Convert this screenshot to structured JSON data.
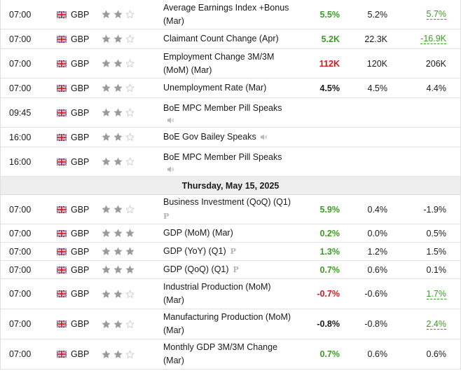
{
  "colors": {
    "positive": "#3a9d23",
    "negative": "#d11a1a",
    "star_on": "#9a9a9a",
    "star_off": "#cccccc",
    "date_bg": "#eeeeee"
  },
  "icons": {
    "flag": "uk-flag-icon",
    "star": "star-icon",
    "speech": "speaker-icon",
    "preliminary": "preliminary-p-icon"
  },
  "date_header_2": "Thursday, May 15, 2025",
  "events_1": [
    {
      "time": "07:00",
      "currency": "GBP",
      "stars": 2,
      "line1": "Average Earnings Index +Bonus",
      "line2": "(Mar)",
      "actual": "5.5%",
      "actual_class": "pos",
      "forecast": "5.2%",
      "previous": "5.7%",
      "prev_class": "pos revised",
      "h": 42
    },
    {
      "time": "07:00",
      "currency": "GBP",
      "stars": 2,
      "line1": "Claimant Count Change (Apr)",
      "line2": "",
      "actual": "5.2K",
      "actual_class": "pos",
      "forecast": "22.3K",
      "previous": "-16.9K",
      "prev_class": "pos revised",
      "h": 28
    },
    {
      "time": "07:00",
      "currency": "GBP",
      "stars": 2,
      "line1": "Employment Change 3M/3M",
      "line2": "(MoM) (Mar)",
      "actual": "112K",
      "actual_class": "neg",
      "forecast": "120K",
      "previous": "206K",
      "prev_class": "neutral",
      "h": 42
    },
    {
      "time": "07:00",
      "currency": "GBP",
      "stars": 2,
      "line1": "Unemployment Rate (Mar)",
      "line2": "",
      "actual": "4.5%",
      "actual_class": "neutral",
      "forecast": "4.5%",
      "previous": "4.4%",
      "prev_class": "neutral",
      "h": 28
    },
    {
      "time": "09:45",
      "currency": "GBP",
      "stars": 2,
      "line1": "BoE MPC Member Pill Speaks",
      "line2": "",
      "speech": "block",
      "actual": "",
      "actual_class": "neutral",
      "forecast": "",
      "previous": "",
      "prev_class": "neutral",
      "h": 42
    },
    {
      "time": "16:00",
      "currency": "GBP",
      "stars": 2,
      "line1": "BoE Gov Bailey Speaks",
      "line2": "",
      "speech": "inline",
      "actual": "",
      "actual_class": "neutral",
      "forecast": "",
      "previous": "",
      "prev_class": "neutral",
      "h": 28
    },
    {
      "time": "16:00",
      "currency": "GBP",
      "stars": 2,
      "line1": "BoE MPC Member Pill Speaks",
      "line2": "",
      "speech": "block",
      "actual": "",
      "actual_class": "neutral",
      "forecast": "",
      "previous": "",
      "prev_class": "neutral",
      "h": 42
    }
  ],
  "events_2": [
    {
      "time": "07:00",
      "currency": "GBP",
      "stars": 2,
      "line1": "Business Investment (QoQ) (Q1)",
      "line2": "",
      "prelim": "block",
      "actual": "5.9%",
      "actual_class": "pos",
      "forecast": "0.4%",
      "previous": "-1.9%",
      "prev_class": "neutral",
      "h": 42
    },
    {
      "time": "07:00",
      "currency": "GBP",
      "stars": 3,
      "line1": "GDP (MoM) (Mar)",
      "line2": "",
      "actual": "0.2%",
      "actual_class": "pos",
      "forecast": "0.0%",
      "previous": "0.5%",
      "prev_class": "neutral",
      "h": 26
    },
    {
      "time": "07:00",
      "currency": "GBP",
      "stars": 3,
      "line1": "GDP (YoY) (Q1)",
      "line2": "",
      "prelim": "inline",
      "actual": "1.3%",
      "actual_class": "pos",
      "forecast": "1.2%",
      "previous": "1.5%",
      "prev_class": "neutral",
      "h": 26
    },
    {
      "time": "07:00",
      "currency": "GBP",
      "stars": 3,
      "line1": "GDP (QoQ) (Q1)",
      "line2": "",
      "prelim": "inline",
      "actual": "0.7%",
      "actual_class": "pos",
      "forecast": "0.6%",
      "previous": "0.1%",
      "prev_class": "neutral",
      "h": 26
    },
    {
      "time": "07:00",
      "currency": "GBP",
      "stars": 2,
      "line1": "Industrial Production (MoM)",
      "line2": "(Mar)",
      "actual": "-0.7%",
      "actual_class": "neg",
      "forecast": "-0.6%",
      "previous": "1.7%",
      "prev_class": "pos revised",
      "h": 43
    },
    {
      "time": "07:00",
      "currency": "GBP",
      "stars": 2,
      "line1": "Manufacturing Production (MoM)",
      "line2": "(Mar)",
      "actual": "-0.8%",
      "actual_class": "neutral",
      "forecast": "-0.8%",
      "previous": "2.4%",
      "prev_class": "pos revised",
      "h": 43
    },
    {
      "time": "07:00",
      "currency": "GBP",
      "stars": 2,
      "line1": "Monthly GDP 3M/3M Change",
      "line2": "(Mar)",
      "actual": "0.7%",
      "actual_class": "pos",
      "forecast": "0.6%",
      "previous": "0.6%",
      "prev_class": "neutral",
      "h": 43
    }
  ]
}
